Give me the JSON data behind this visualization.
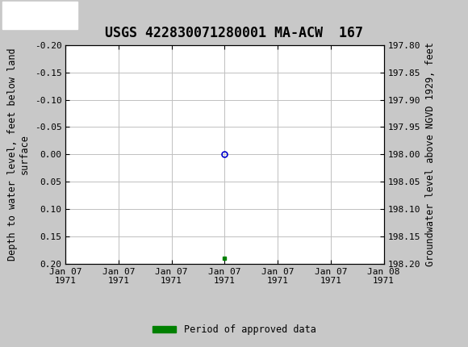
{
  "title": "USGS 422830071280001 MA-ACW  167",
  "title_fontsize": 12,
  "header_color": "#1a6b3c",
  "bg_color": "#c8c8c8",
  "plot_bg_color": "#ffffff",
  "ylabel_left": "Depth to water level, feet below land\nsurface",
  "ylabel_right": "Groundwater level above NGVD 1929, feet",
  "ylim_left": [
    -0.2,
    0.2
  ],
  "ylim_right_top": 198.2,
  "ylim_right_bottom": 197.8,
  "yticks_left": [
    -0.2,
    -0.15,
    -0.1,
    -0.05,
    0.0,
    0.05,
    0.1,
    0.15,
    0.2
  ],
  "yticks_right": [
    198.2,
    198.15,
    198.1,
    198.05,
    198.0,
    197.95,
    197.9,
    197.85,
    197.8
  ],
  "ytick_labels_right": [
    "198.20",
    "198.15",
    "198.10",
    "198.05",
    "198.00",
    "197.95",
    "197.90",
    "197.85",
    "197.80"
  ],
  "xlabel_ticks": [
    "Jan 07\n1971",
    "Jan 07\n1971",
    "Jan 07\n1971",
    "Jan 07\n1971",
    "Jan 07\n1971",
    "Jan 07\n1971",
    "Jan 08\n1971"
  ],
  "data_point_x": 3.0,
  "data_point_y": 0.0,
  "data_point_color": "#0000cd",
  "data_point_marker": "o",
  "data_point_markersize": 5,
  "green_bar_x": 3.0,
  "green_bar_y": 0.19,
  "green_bar_color": "#008000",
  "legend_label": "Period of approved data",
  "grid_color": "#c0c0c0",
  "tick_label_fontsize": 8,
  "axis_label_fontsize": 8.5,
  "font_family": "monospace",
  "x_num_ticks": 7,
  "xlim": [
    0,
    6
  ]
}
